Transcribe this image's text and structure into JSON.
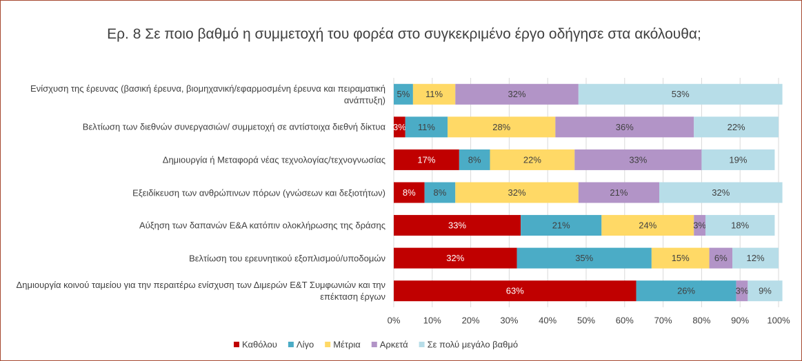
{
  "chart_data": {
    "type": "stacked-barh",
    "title": "Ερ. 8 Σε ποιο βαθμό η συμμετοχή του φορέα στο συγκεκριμένο έργο οδήγησε στα ακόλουθα;",
    "categories": [
      "Ενίσχυση της έρευνας (βασική έρευνα, βιομηχανική/εφαρμοσμένη έρευνα και πειραματική ανάπτυξη)",
      "Βελτίωση των διεθνών συνεργασιών/ συμμετοχή σε αντίστοιχα διεθνή δίκτυα",
      "Δημιουργία ή Μεταφορά νέας τεχνολογίας/τεχνογνωσίας",
      "Εξειδίκευση των ανθρώπινων πόρων (γνώσεων και δεξιοτήτων)",
      "Αύξηση των δαπανών Ε&Α κατόπιν ολοκλήρωσης της δράσης",
      "Βελτίωση του ερευνητικού εξοπλισμού/υποδομών",
      "Δημιουργία κοινού ταμείου για την περαιτέρω ενίσχυση των Διμερών Ε&Τ Συμφωνιών και την επέκταση έργων"
    ],
    "series": [
      {
        "name": "Καθόλου",
        "color": "#c00000",
        "values": [
          0,
          3,
          17,
          8,
          33,
          32,
          63
        ],
        "value_labels": [
          null,
          "3%",
          "17%",
          "8%",
          "33%",
          "32%",
          "63%"
        ]
      },
      {
        "name": "Λίγο",
        "color": "#4bacc6",
        "values": [
          5,
          11,
          8,
          8,
          21,
          35,
          26
        ],
        "value_labels": [
          "5%",
          "11%",
          "8%",
          "8%",
          "21%",
          "35%",
          "26%"
        ]
      },
      {
        "name": "Μέτρια",
        "color": "#ffd966",
        "values": [
          11,
          28,
          22,
          32,
          24,
          15,
          0
        ],
        "value_labels": [
          "11%",
          "28%",
          "22%",
          "32%",
          "24%",
          "15%",
          null
        ]
      },
      {
        "name": "Αρκετά",
        "color": "#b294c7",
        "values": [
          32,
          36,
          33,
          21,
          3,
          6,
          3
        ],
        "value_labels": [
          "32%",
          "36%",
          "33%",
          "21%",
          "3%",
          "6%",
          "3%"
        ]
      },
      {
        "name": "Σε πολύ μεγάλο βαθμό",
        "color": "#b7dde8",
        "values": [
          53,
          22,
          19,
          32,
          18,
          12,
          9
        ],
        "value_labels": [
          "53%",
          "22%",
          "19%",
          "32%",
          "18%",
          "12%",
          "9%"
        ]
      }
    ],
    "xlim": [
      0,
      100
    ],
    "xticks": [
      {
        "value": 0,
        "label": "0%"
      },
      {
        "value": 10,
        "label": "10%"
      },
      {
        "value": 20,
        "label": "20%"
      },
      {
        "value": 30,
        "label": "30%"
      },
      {
        "value": 40,
        "label": "40%"
      },
      {
        "value": 50,
        "label": "50%"
      },
      {
        "value": 60,
        "label": "60%"
      },
      {
        "value": 70,
        "label": "70%"
      },
      {
        "value": 80,
        "label": "80%"
      },
      {
        "value": 90,
        "label": "90%"
      },
      {
        "value": 100,
        "label": "100%"
      }
    ],
    "grid": true,
    "legend": "bottom"
  }
}
